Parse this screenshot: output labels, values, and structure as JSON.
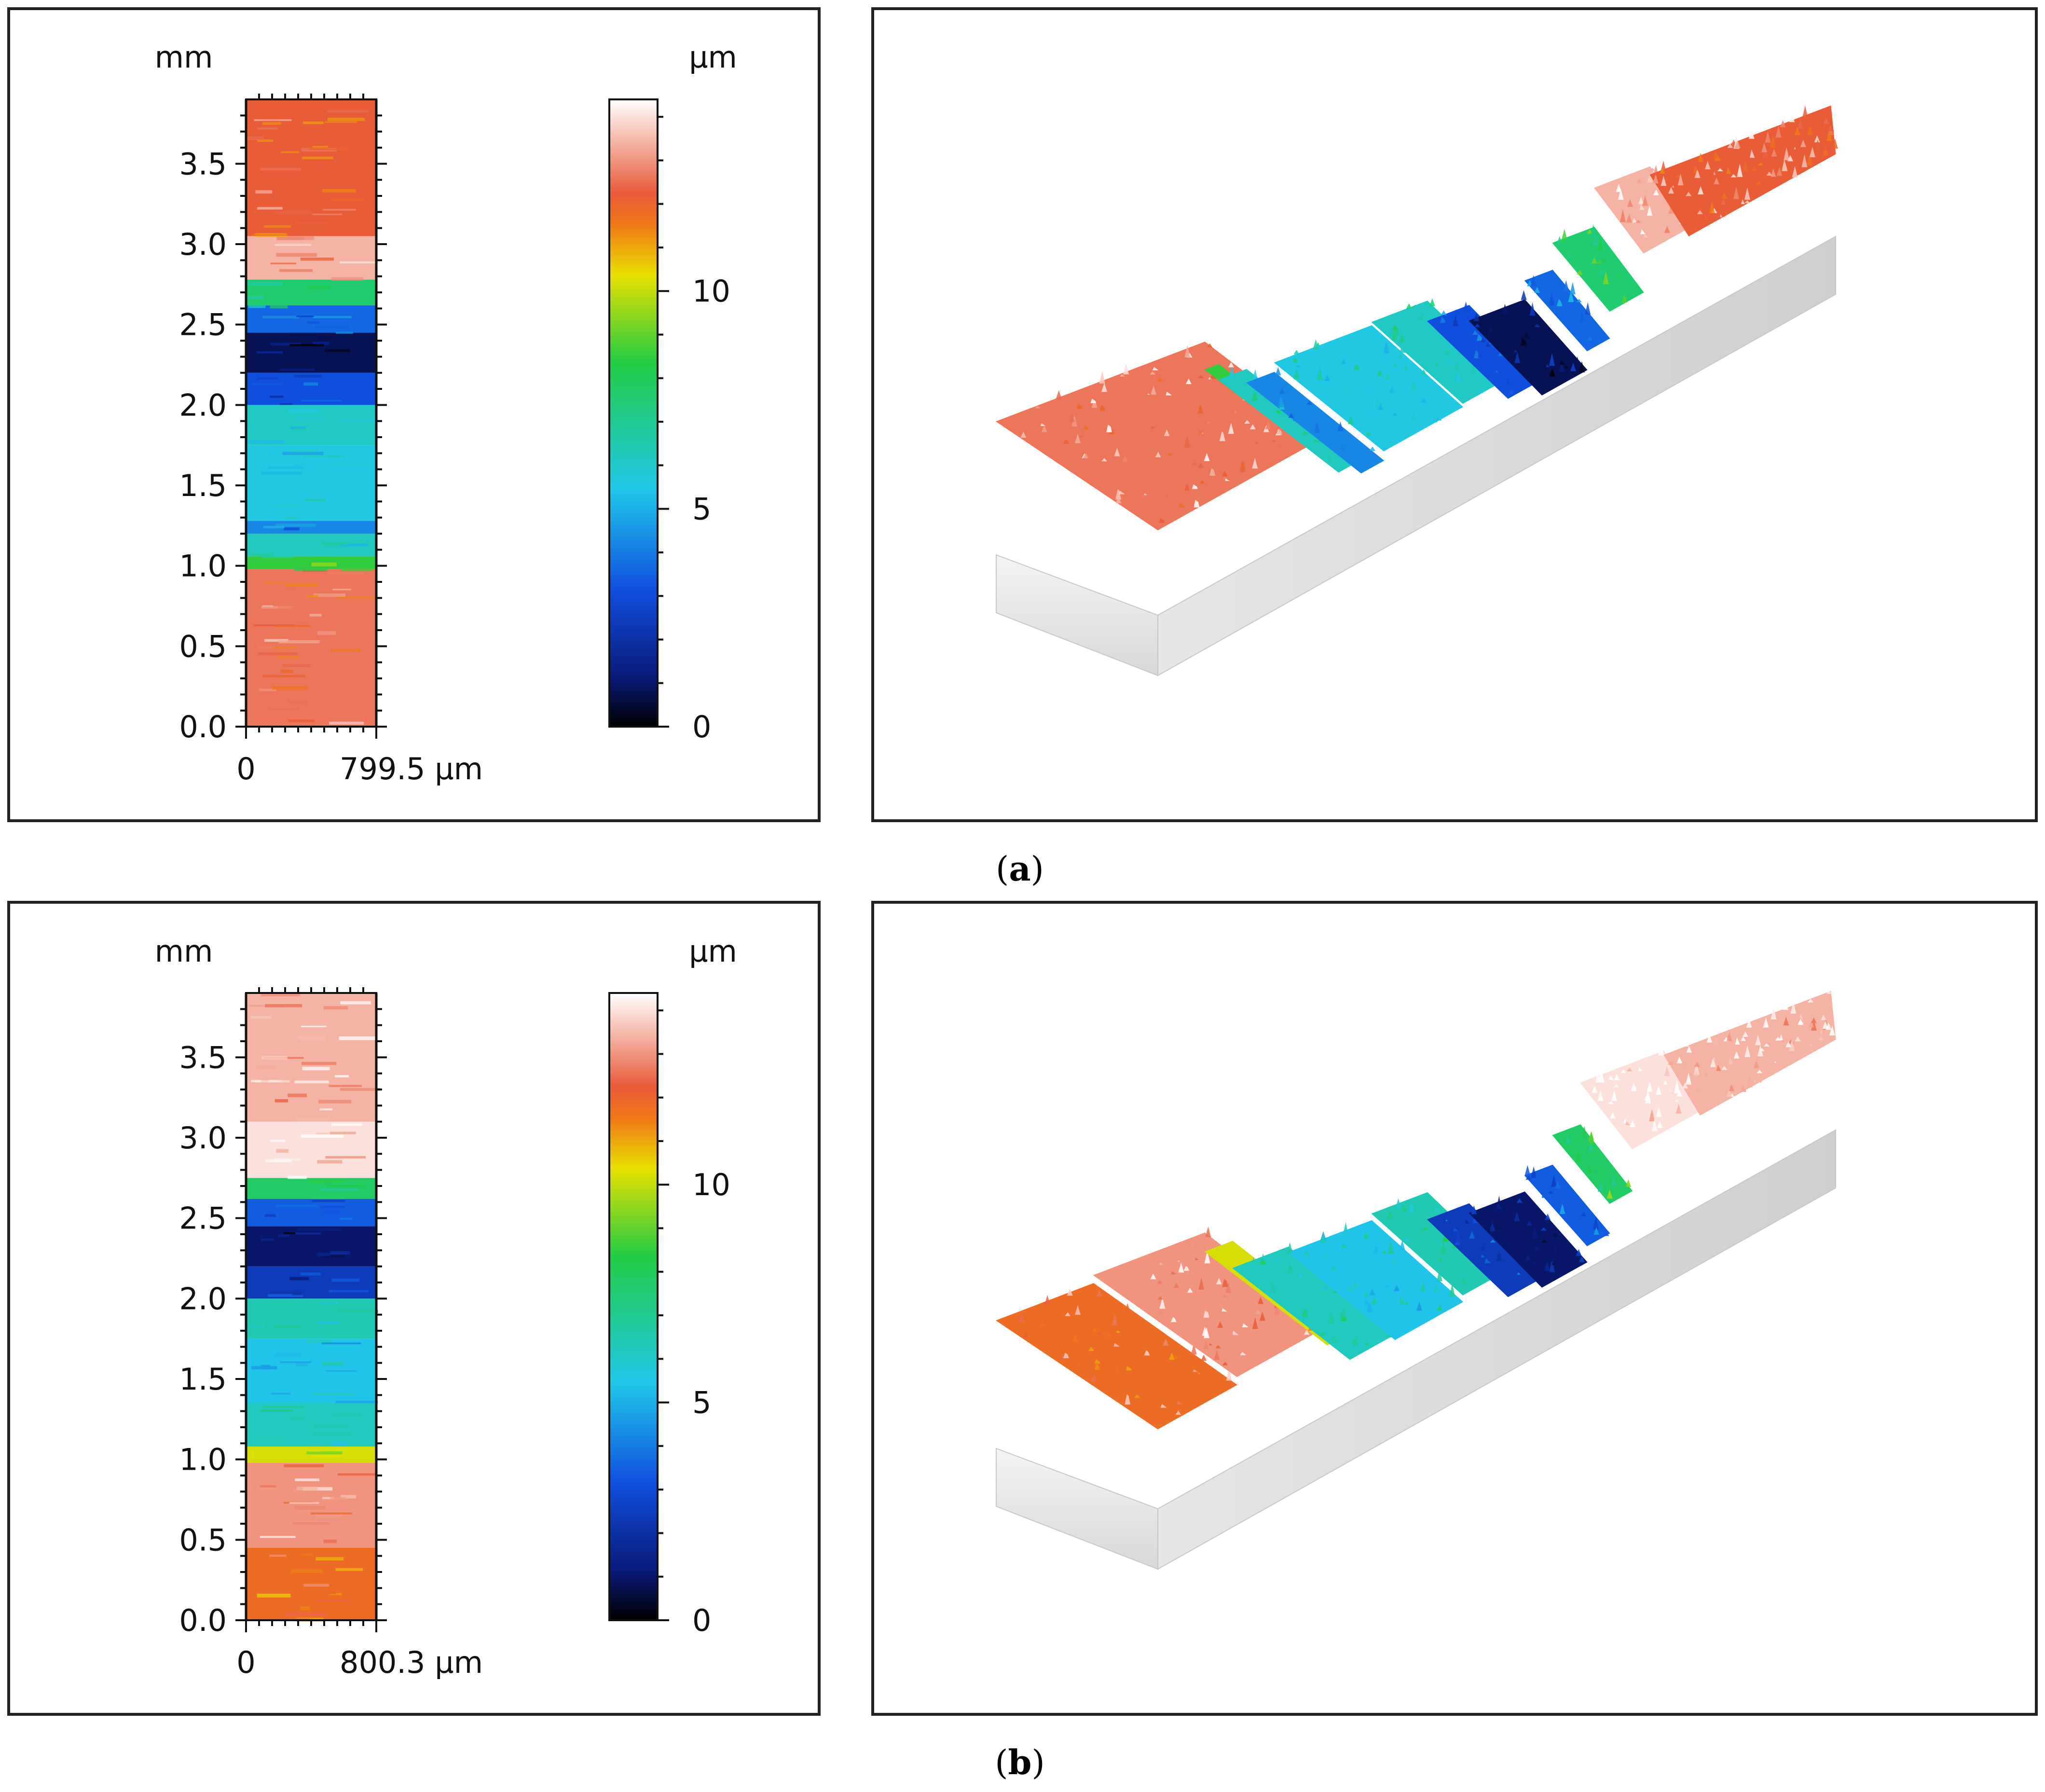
{
  "figure": {
    "colormap": [
      "#000000",
      "#0a1a7a",
      "#1050e0",
      "#20c8e8",
      "#22cc44",
      "#e8e000",
      "#f07818",
      "#e85a3a",
      "#ffffff"
    ]
  },
  "chart_data": [
    {
      "id": "a",
      "type": "heatmap",
      "caption": "a",
      "caption_open": "(",
      "caption_close": ")",
      "x_unit": "µm",
      "y_unit": "mm",
      "x_tick_labels": [
        "0",
        "799.5 µm"
      ],
      "x_range": [
        0,
        799.5
      ],
      "y_ticks": [
        0.0,
        0.5,
        1.0,
        1.5,
        2.0,
        2.5,
        3.0,
        3.5
      ],
      "y_tick_labels": [
        "0.0",
        "0.5",
        "1.0",
        "1.5",
        "2.0",
        "2.5",
        "3.0",
        "3.5"
      ],
      "y_range": [
        0,
        3.9
      ],
      "colorbar_unit": "µm",
      "colorbar_ticks": [
        0,
        5,
        10
      ],
      "colorbar_tick_labels": [
        "0",
        "5",
        "10"
      ],
      "colorbar_range": [
        0,
        14.4
      ],
      "profile_bands": [
        {
          "from": 0.0,
          "to": 0.98,
          "level": 12.6
        },
        {
          "from": 0.98,
          "to": 1.06,
          "level": 8.5
        },
        {
          "from": 1.06,
          "to": 1.2,
          "level": 6.2
        },
        {
          "from": 1.2,
          "to": 1.28,
          "level": 4.2
        },
        {
          "from": 1.28,
          "to": 1.75,
          "level": 5.6
        },
        {
          "from": 1.75,
          "to": 2.0,
          "level": 6.1
        },
        {
          "from": 2.0,
          "to": 2.2,
          "level": 3.1
        },
        {
          "from": 2.2,
          "to": 2.45,
          "level": 0.8
        },
        {
          "from": 2.45,
          "to": 2.62,
          "level": 3.6
        },
        {
          "from": 2.62,
          "to": 2.78,
          "level": 7.6
        },
        {
          "from": 2.78,
          "to": 3.05,
          "level": 13.4
        },
        {
          "from": 3.05,
          "to": 3.9,
          "level": 12.2
        }
      ]
    },
    {
      "id": "b",
      "type": "heatmap",
      "caption": "b",
      "caption_open": "(",
      "caption_close": ")",
      "x_unit": "µm",
      "y_unit": "mm",
      "x_tick_labels": [
        "0",
        "800.3 µm"
      ],
      "x_range": [
        0,
        800.3
      ],
      "y_ticks": [
        0.0,
        0.5,
        1.0,
        1.5,
        2.0,
        2.5,
        3.0,
        3.5
      ],
      "y_tick_labels": [
        "0.0",
        "0.5",
        "1.0",
        "1.5",
        "2.0",
        "2.5",
        "3.0",
        "3.5"
      ],
      "y_range": [
        0,
        3.9
      ],
      "colorbar_unit": "µm",
      "colorbar_ticks": [
        0,
        5,
        10
      ],
      "colorbar_tick_labels": [
        "0",
        "5",
        "10"
      ],
      "colorbar_range": [
        0,
        14.4
      ],
      "profile_bands": [
        {
          "from": 0.0,
          "to": 0.45,
          "level": 11.8
        },
        {
          "from": 0.45,
          "to": 0.98,
          "level": 13.0
        },
        {
          "from": 0.98,
          "to": 1.08,
          "level": 10.2
        },
        {
          "from": 1.08,
          "to": 1.35,
          "level": 6.2
        },
        {
          "from": 1.35,
          "to": 1.75,
          "level": 5.4
        },
        {
          "from": 1.75,
          "to": 2.0,
          "level": 6.4
        },
        {
          "from": 2.0,
          "to": 2.2,
          "level": 2.4
        },
        {
          "from": 2.2,
          "to": 2.45,
          "level": 1.0
        },
        {
          "from": 2.45,
          "to": 2.62,
          "level": 3.4
        },
        {
          "from": 2.62,
          "to": 2.75,
          "level": 7.8
        },
        {
          "from": 2.75,
          "to": 3.1,
          "level": 14.0
        },
        {
          "from": 3.1,
          "to": 3.9,
          "level": 13.4
        }
      ]
    }
  ]
}
